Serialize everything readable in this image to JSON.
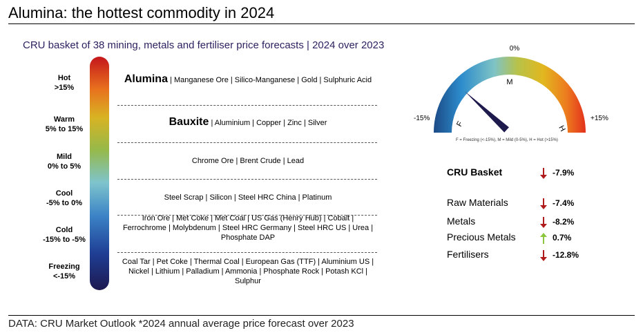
{
  "title": "Alumina: the hottest commodity in 2024",
  "subtitle": "CRU basket of 38 mining, metals and fertiliser price forecasts | 2024 over 2023",
  "footer": "DATA: CRU Market Outlook *2024 annual average price forecast over 2023",
  "chart_data": [
    {
      "type": "table",
      "tiers": [
        {
          "name": "Hot",
          "range": ">15%",
          "lead": "Alumina",
          "items": [
            "Manganese Ore",
            "Silico-Manganese",
            "Gold",
            "Sulphuric Acid"
          ],
          "lines": [
            " | Manganese Ore | Silico-Manganese | Gold | Sulphuric Acid"
          ]
        },
        {
          "name": "Warm",
          "range": "5% to 15%",
          "lead": "Bauxite",
          "items": [
            "Aluminium",
            "Copper",
            "Zinc",
            "Silver"
          ],
          "lines": [
            " | Aluminium | Copper | Zinc | Silver"
          ]
        },
        {
          "name": "Mild",
          "range": "0% to 5%",
          "lead": "",
          "items": [
            "Chrome Ore",
            "Brent Crude",
            "Lead"
          ],
          "lines": [
            "Chrome Ore | Brent Crude | Lead"
          ]
        },
        {
          "name": "Cool",
          "range": "-5% to 0%",
          "lead": "",
          "items": [
            "Steel Scrap",
            "Silicon",
            "Steel HRC China",
            "Platinum"
          ],
          "lines": [
            "Steel Scrap | Silicon | Steel HRC China | Platinum"
          ]
        },
        {
          "name": "Cold",
          "range": "-15% to -5%",
          "lead": "",
          "items": [
            "Iron Ore",
            "Met Coke",
            "Met Coal",
            "US Gas (Henry Hub)",
            "Cobalt",
            "Ferrochrome",
            "Molybdenum",
            "Steel HRC Germany",
            "Steel HRC US",
            "Urea",
            "Phosphate DAP"
          ],
          "lines": [
            "Iron Ore | Met Coke | Met Coal | US Gas (Henry Hub) | Cobalt |",
            "Ferrochrome | Molybdenum | Steel HRC Germany | Steel HRC US | Urea |",
            "Phosphate DAP"
          ]
        },
        {
          "name": "Freezing",
          "range": "<-15%",
          "lead": "",
          "items": [
            "Coal Tar",
            "Pet Coke",
            "Thermal Coal",
            "European Gas (TTF)",
            "Aluminium US",
            "Nickel",
            "Lithium",
            "Palladium",
            "Ammonia",
            "Phosphate Rock",
            "Potash KCl",
            "Sulphur"
          ],
          "lines": [
            "Coal Tar | Pet Coke | Thermal Coal | European Gas (TTF) | Aluminium US |",
            "Nickel | Lithium | Palladium | Ammonia | Phosphate Rock | Potash KCl |",
            "Sulphur"
          ]
        }
      ],
      "colors": {
        "hot": "#c4161c",
        "warm": "#d8b323",
        "mild": "#96b94a",
        "cool": "#7ec4cd",
        "cold": "#2a56a8",
        "freezing": "#1d1950"
      }
    },
    {
      "type": "gauge",
      "min_label": "-15%",
      "mid_label": "0%",
      "max_label": "+15%",
      "min": -15,
      "max": 15,
      "value": -7.9,
      "zone_labels": [
        "F",
        "M",
        "H"
      ],
      "legend": "F = Freezing (<-15%), M = Mild (0-5%), H = Hot (>15%)",
      "needle_color": "#1e1a4d"
    },
    {
      "type": "table",
      "headline": {
        "name": "CRU Basket",
        "value": -7.9,
        "label": "-7.9%",
        "direction": "down"
      },
      "rows": [
        {
          "name": "Raw Materials",
          "value": -7.4,
          "label": "-7.4%",
          "direction": "down"
        },
        {
          "name": "Metals",
          "value": -8.2,
          "label": "-8.2%",
          "direction": "down"
        },
        {
          "name": "Precious Metals",
          "value": 0.7,
          "label": "0.7%",
          "direction": "up"
        },
        {
          "name": "Fertilisers",
          "value": -12.8,
          "label": "-12.8%",
          "direction": "down"
        }
      ],
      "colors": {
        "down": "#b01c1c",
        "up": "#8cc63f"
      }
    }
  ]
}
